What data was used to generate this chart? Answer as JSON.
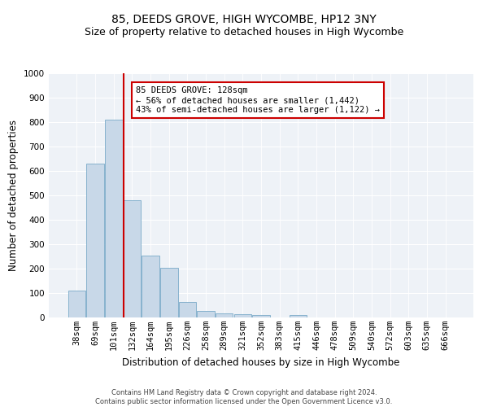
{
  "title": "85, DEEDS GROVE, HIGH WYCOMBE, HP12 3NY",
  "subtitle": "Size of property relative to detached houses in High Wycombe",
  "xlabel": "Distribution of detached houses by size in High Wycombe",
  "ylabel": "Number of detached properties",
  "footer_line1": "Contains HM Land Registry data © Crown copyright and database right 2024.",
  "footer_line2": "Contains public sector information licensed under the Open Government Licence v3.0.",
  "bar_labels": [
    "38sqm",
    "69sqm",
    "101sqm",
    "132sqm",
    "164sqm",
    "195sqm",
    "226sqm",
    "258sqm",
    "289sqm",
    "321sqm",
    "352sqm",
    "383sqm",
    "415sqm",
    "446sqm",
    "478sqm",
    "509sqm",
    "540sqm",
    "572sqm",
    "603sqm",
    "635sqm",
    "666sqm"
  ],
  "bar_values": [
    110,
    630,
    810,
    480,
    255,
    205,
    62,
    28,
    18,
    13,
    10,
    0,
    10,
    0,
    0,
    0,
    0,
    0,
    0,
    0,
    0
  ],
  "bar_color": "#c8d8e8",
  "bar_edge_color": "#7aaac8",
  "vline_x_index": 3,
  "vline_color": "#cc0000",
  "annotation_text": "85 DEEDS GROVE: 128sqm\n← 56% of detached houses are smaller (1,442)\n43% of semi-detached houses are larger (1,122) →",
  "annotation_box_color": "#ffffff",
  "annotation_box_edge_color": "#cc0000",
  "ylim": [
    0,
    1000
  ],
  "yticks": [
    0,
    100,
    200,
    300,
    400,
    500,
    600,
    700,
    800,
    900,
    1000
  ],
  "background_color": "#eef2f7",
  "title_fontsize": 10,
  "subtitle_fontsize": 9,
  "axis_fontsize": 8.5,
  "tick_fontsize": 7.5,
  "footer_fontsize": 6
}
